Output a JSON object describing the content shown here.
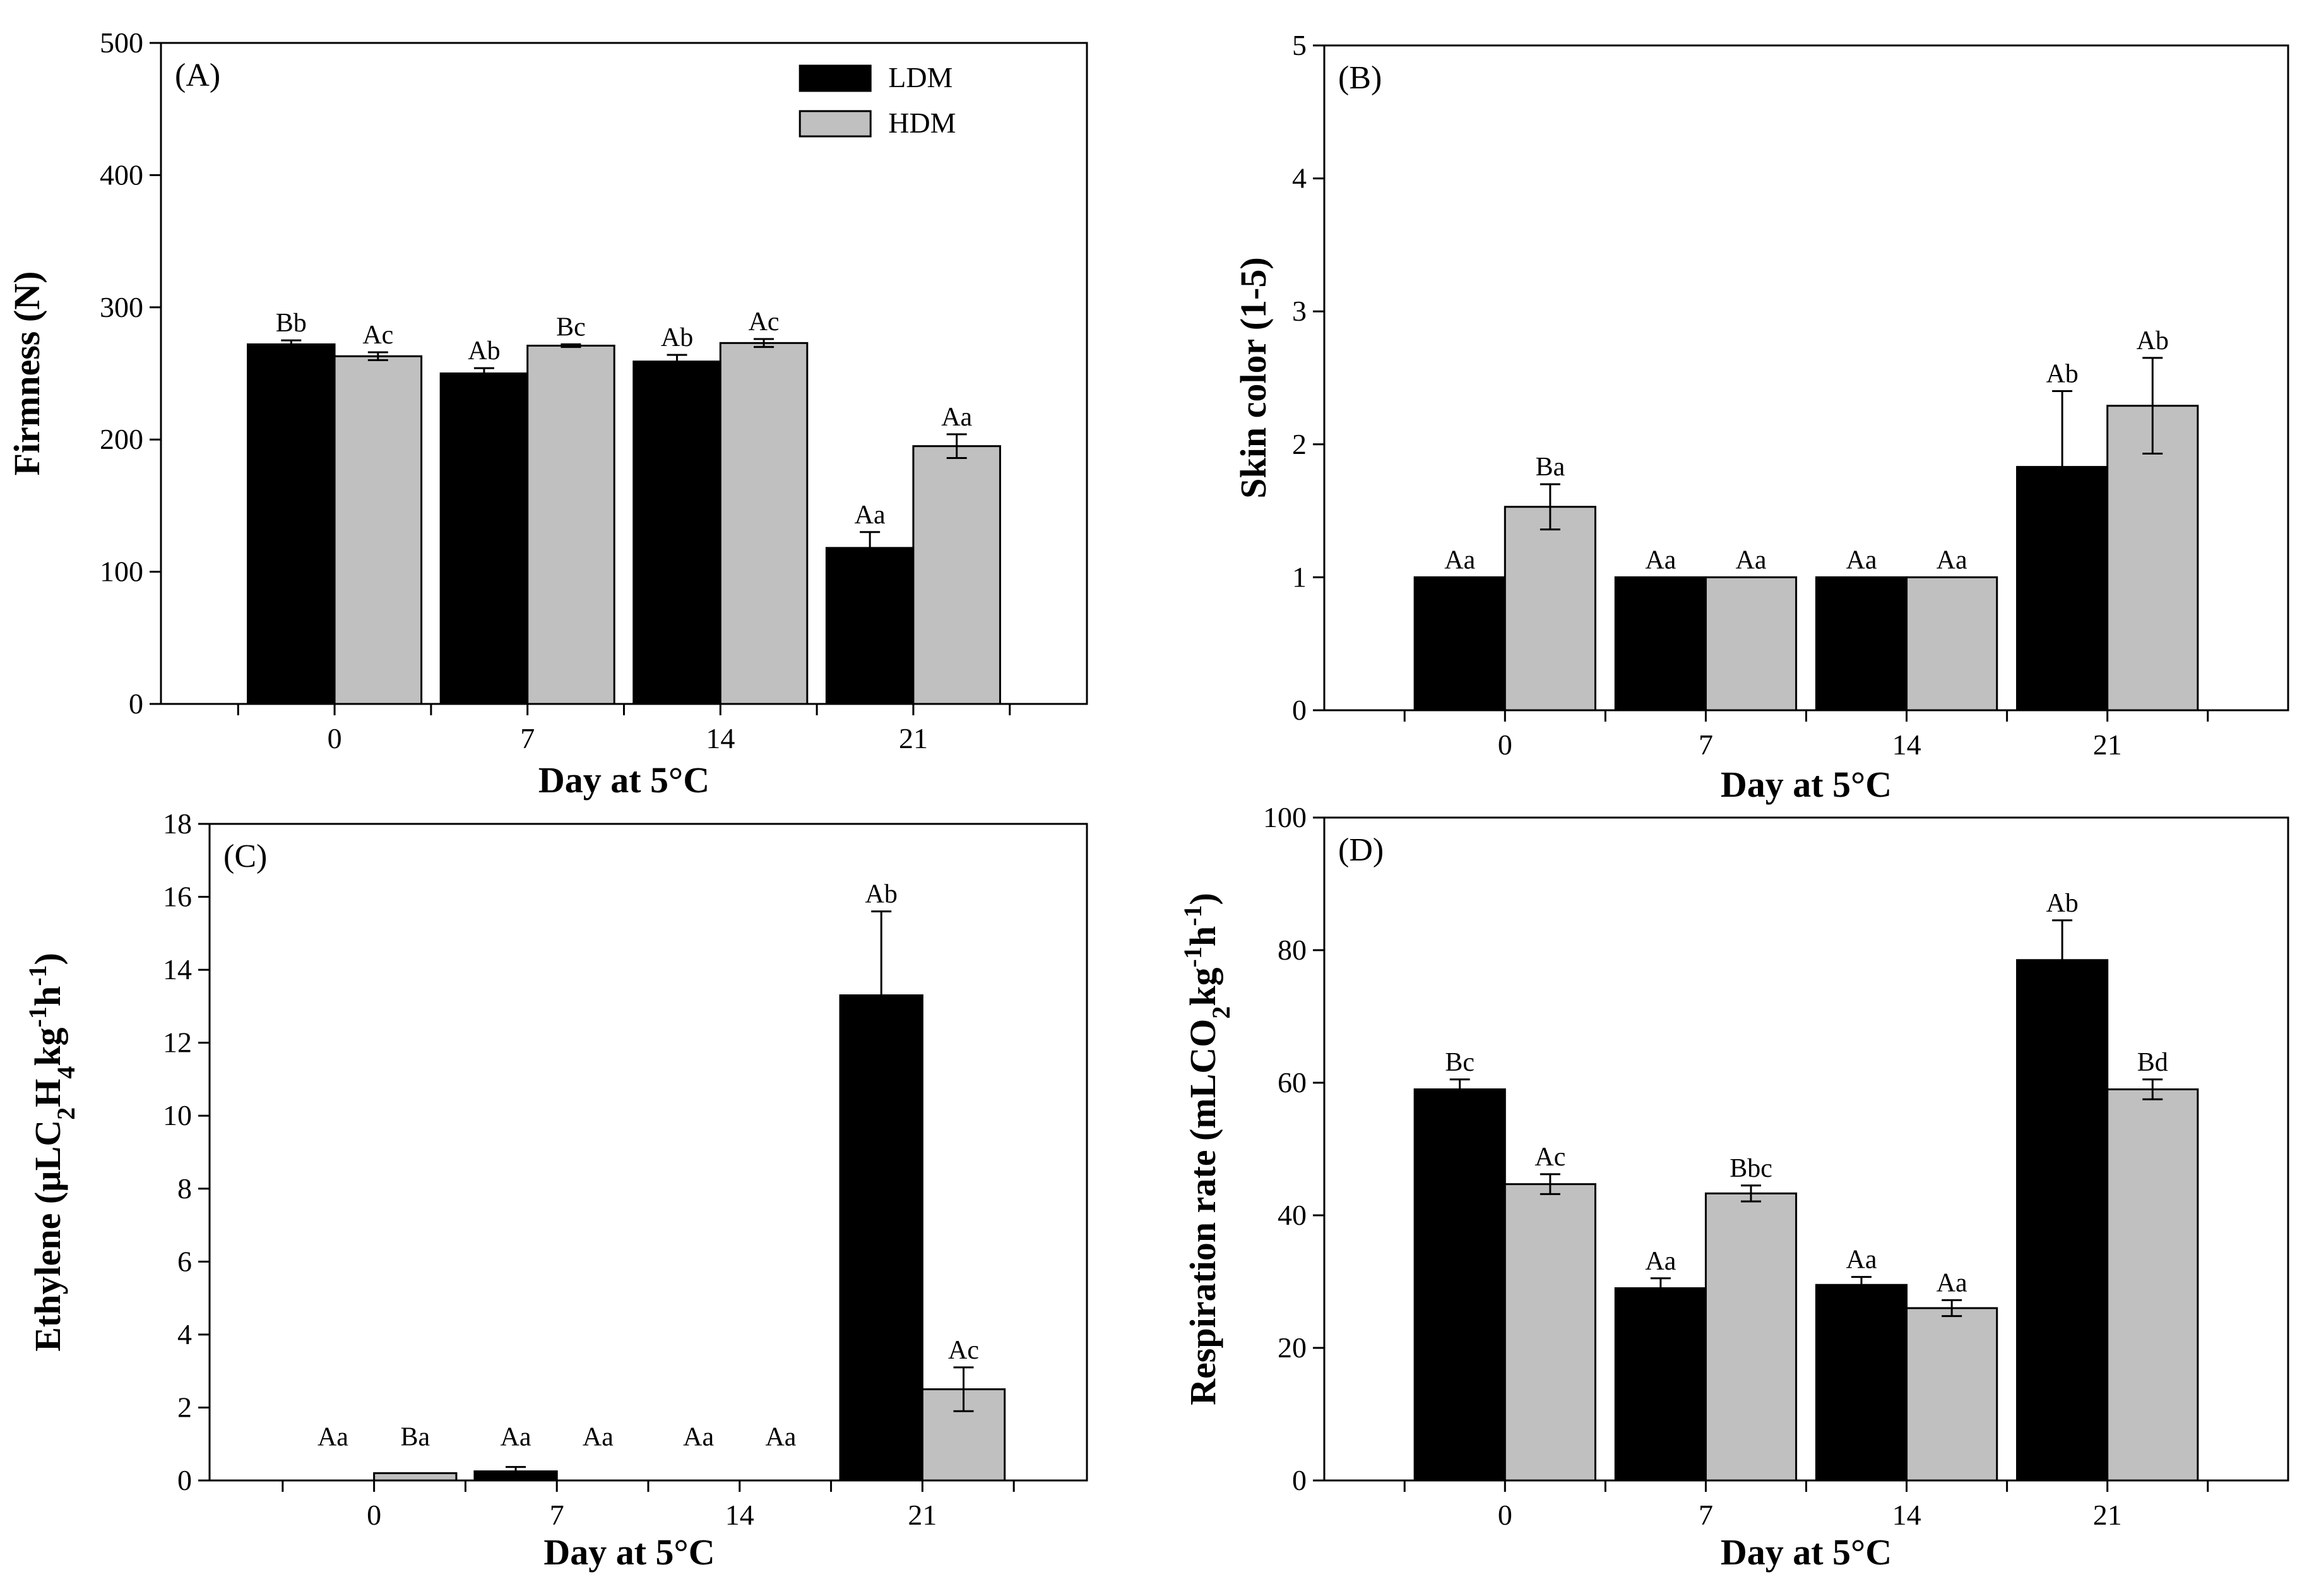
{
  "legend": [
    {
      "name": "LDM",
      "color": "#000000"
    },
    {
      "name": "HDM",
      "color": "#c0c0c0"
    }
  ],
  "chart_data": [
    {
      "type": "bar",
      "panel": "(A)",
      "xlabel": "Day at 5°C",
      "ylabel": "Firmness (N)",
      "ylim": [
        0,
        500
      ],
      "yticks": [
        0,
        100,
        200,
        300,
        400,
        500
      ],
      "categories": [
        "0",
        "7",
        "14",
        "21"
      ],
      "grid": false,
      "legend_position": "top-right",
      "series": [
        {
          "name": "LDM",
          "color": "#000000",
          "values": [
            272,
            250,
            259,
            118
          ],
          "errors": [
            3,
            4,
            5,
            12
          ],
          "letters": [
            "Bb",
            "Ab",
            "Ab",
            "Aa"
          ]
        },
        {
          "name": "HDM",
          "color": "#c0c0c0",
          "values": [
            263,
            271,
            273,
            195
          ],
          "errors": [
            3,
            1,
            3,
            9
          ],
          "letters": [
            "Ac",
            "Bc",
            "Ac",
            "Aa"
          ]
        }
      ]
    },
    {
      "type": "bar",
      "panel": "(B)",
      "xlabel": "Day at 5°C",
      "ylabel": "Skin color (1-5)",
      "ylim": [
        0,
        5
      ],
      "yticks": [
        0,
        1,
        2,
        3,
        4,
        5
      ],
      "categories": [
        "0",
        "7",
        "14",
        "21"
      ],
      "grid": false,
      "series": [
        {
          "name": "LDM",
          "color": "#000000",
          "values": [
            1,
            1,
            1,
            1.83
          ],
          "errors": [
            0,
            0,
            0,
            0.57
          ],
          "letters": [
            "Aa",
            "Aa",
            "Aa",
            "Ab"
          ]
        },
        {
          "name": "HDM",
          "color": "#c0c0c0",
          "values": [
            1.53,
            1,
            1,
            2.29
          ],
          "errors": [
            0.17,
            0,
            0,
            0.36
          ],
          "letters": [
            "Ba",
            "Aa",
            "Aa",
            "Ab"
          ]
        }
      ]
    },
    {
      "type": "bar",
      "panel": "(C)",
      "xlabel": "Day at 5°C",
      "ylabel_parts": [
        {
          "t": "Ethylene (µLC",
          "s": ""
        },
        {
          "t": "2",
          "s": "sub"
        },
        {
          "t": "H",
          "s": ""
        },
        {
          "t": "4",
          "s": "sub"
        },
        {
          "t": "kg",
          "s": ""
        },
        {
          "t": "-1",
          "s": "super"
        },
        {
          "t": "h",
          "s": ""
        },
        {
          "t": "-1",
          "s": "super"
        },
        {
          "t": ")",
          "s": ""
        }
      ],
      "ylim": [
        0,
        18
      ],
      "yticks": [
        0,
        2,
        4,
        6,
        8,
        10,
        12,
        14,
        16,
        18
      ],
      "categories": [
        "0",
        "7",
        "14",
        "21"
      ],
      "grid": false,
      "series": [
        {
          "name": "LDM",
          "color": "#000000",
          "values": [
            0,
            0.25,
            0,
            13.3
          ],
          "errors": [
            0,
            0.12,
            0,
            2.3
          ],
          "letters": [
            "Aa",
            "Aa",
            "Aa",
            "Ab"
          ]
        },
        {
          "name": "HDM",
          "color": "#c0c0c0",
          "values": [
            0.2,
            0,
            0,
            2.5
          ],
          "errors": [
            0,
            0,
            0,
            0.6
          ],
          "letters": [
            "Ba",
            "Aa",
            "Aa",
            "Ac"
          ]
        }
      ]
    },
    {
      "type": "bar",
      "panel": "(D)",
      "xlabel": "Day at 5°C",
      "ylabel_parts": [
        {
          "t": "Respiration rate (mLCO",
          "s": ""
        },
        {
          "t": "2",
          "s": "sub"
        },
        {
          "t": "kg",
          "s": ""
        },
        {
          "t": "-1",
          "s": "super"
        },
        {
          "t": "h",
          "s": ""
        },
        {
          "t": "-1",
          "s": "super"
        },
        {
          "t": ")",
          "s": ""
        }
      ],
      "ylim": [
        0,
        100
      ],
      "yticks": [
        0,
        20,
        40,
        60,
        80,
        100
      ],
      "categories": [
        "0",
        "7",
        "14",
        "21"
      ],
      "grid": false,
      "series": [
        {
          "name": "LDM",
          "color": "#000000",
          "values": [
            59,
            29,
            29.5,
            78.5
          ],
          "errors": [
            1.5,
            1.5,
            1.2,
            6
          ],
          "letters": [
            "Bc",
            "Aa",
            "Aa",
            "Ab"
          ]
        },
        {
          "name": "HDM",
          "color": "#c0c0c0",
          "values": [
            44.7,
            43.3,
            26,
            59
          ],
          "errors": [
            1.5,
            1.2,
            1.2,
            1.5
          ],
          "letters": [
            "Ac",
            "Bbc",
            "Aa",
            "Bd"
          ]
        }
      ]
    }
  ]
}
